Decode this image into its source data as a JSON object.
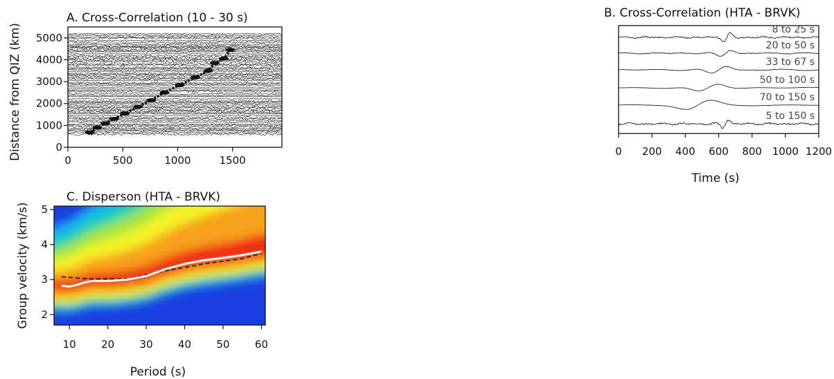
{
  "chart_data": [
    {
      "id": "A",
      "type": "scatter",
      "title": "A. Cross-Correlation (10 - 30 s)",
      "xlabel": "",
      "ylabel": "Distance from QIZ (km)",
      "xlim": [
        0,
        1950
      ],
      "ylim": [
        0,
        5500
      ],
      "xticks": [
        0,
        500,
        1000,
        1500
      ],
      "yticks": [
        0,
        1000,
        2000,
        3000,
        4000,
        5000
      ],
      "series": [
        {
          "x": [
            200,
            270,
            340,
            420,
            520,
            640,
            760,
            880,
            1020,
            1160,
            1280,
            1340,
            1420,
            1480
          ],
          "y": [
            680,
            900,
            1100,
            1300,
            1550,
            1850,
            2150,
            2500,
            2850,
            3200,
            3500,
            3850,
            4050,
            4450
          ]
        }
      ]
    },
    {
      "id": "B",
      "type": "line",
      "title": "B. Cross-Correlation (HTA - BRVK)",
      "xlabel": "Time (s)",
      "ylabel": "",
      "xlim": [
        0,
        1200
      ],
      "xticks": [
        0,
        200,
        400,
        600,
        800,
        1000,
        1200
      ],
      "traces": [
        {
          "label": "8 to 25 s",
          "arrival": 650
        },
        {
          "label": "20 to 50 s",
          "arrival": 640
        },
        {
          "label": "33 to 67 s",
          "arrival": 600
        },
        {
          "label": "50 to 100 s",
          "arrival": 540
        },
        {
          "label": "70 to 150 s",
          "arrival": 480
        },
        {
          "label": "5 to 150 s",
          "arrival": 640
        }
      ]
    },
    {
      "id": "C",
      "type": "heatmap",
      "title": "C. Disperson (HTA - BRVK)",
      "xlabel": "Period (s)",
      "ylabel": "Group velocity (km/s)",
      "xlim": [
        6,
        61
      ],
      "ylim": [
        1.7,
        5.1
      ],
      "xticks": [
        10,
        20,
        30,
        40,
        50,
        60
      ],
      "yticks": [
        2,
        3,
        4,
        5
      ],
      "colors": [
        "#1a3fe0",
        "#14b4f0",
        "#22d3a8",
        "#a6e53c",
        "#f4f428",
        "#f7a21c",
        "#ef2a18"
      ],
      "series": [
        {
          "x": [
            8,
            10,
            12,
            14,
            16,
            20,
            25,
            30,
            35,
            40,
            45,
            50,
            55,
            60
          ],
          "y": [
            2.82,
            2.8,
            2.85,
            2.92,
            2.96,
            2.96,
            3.0,
            3.1,
            3.3,
            3.45,
            3.55,
            3.62,
            3.7,
            3.8
          ]
        },
        {
          "x": [
            8,
            15,
            25,
            35,
            45,
            55,
            60
          ],
          "y": [
            3.08,
            3.02,
            3.02,
            3.25,
            3.45,
            3.6,
            3.75
          ]
        }
      ]
    }
  ]
}
